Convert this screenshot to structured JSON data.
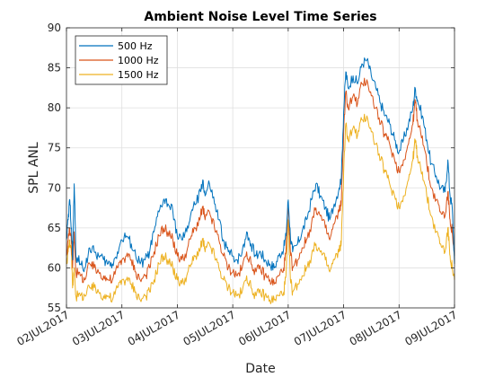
{
  "chart_data": {
    "type": "line",
    "title": "Ambient Noise Level Time Series",
    "xlabel": "Date",
    "ylabel": "SPL ANL",
    "ylim": [
      55,
      90
    ],
    "yticks": [
      55,
      60,
      65,
      70,
      75,
      80,
      85,
      90
    ],
    "xlim": [
      "02JUL2017",
      "09JUL2017"
    ],
    "xtick_labels": [
      "02JUL2017",
      "03JUL2017",
      "04JUL2017",
      "05JUL2017",
      "06JUL2017",
      "07JUL2017",
      "08JUL2017",
      "09JUL2017"
    ],
    "x_unit": "day",
    "grid": true,
    "legend_position": "top-left",
    "series": [
      {
        "name": "500 Hz",
        "color": "#0072BD",
        "points": [
          [
            0.0,
            63.5
          ],
          [
            0.03,
            66.0
          ],
          [
            0.06,
            68.5
          ],
          [
            0.09,
            65.0
          ],
          [
            0.11,
            61.0
          ],
          [
            0.14,
            70.5
          ],
          [
            0.17,
            61.5
          ],
          [
            0.25,
            60.5
          ],
          [
            0.33,
            60.0
          ],
          [
            0.42,
            62.5
          ],
          [
            0.5,
            62.0
          ],
          [
            0.58,
            61.5
          ],
          [
            0.67,
            61.0
          ],
          [
            0.75,
            60.5
          ],
          [
            0.83,
            60.5
          ],
          [
            0.92,
            62.0
          ],
          [
            1.0,
            63.5
          ],
          [
            1.08,
            64.0
          ],
          [
            1.17,
            63.0
          ],
          [
            1.25,
            61.5
          ],
          [
            1.33,
            60.5
          ],
          [
            1.42,
            61.0
          ],
          [
            1.5,
            62.0
          ],
          [
            1.58,
            64.5
          ],
          [
            1.67,
            67.0
          ],
          [
            1.75,
            68.5
          ],
          [
            1.83,
            68.0
          ],
          [
            1.92,
            67.0
          ],
          [
            2.0,
            64.0
          ],
          [
            2.08,
            63.5
          ],
          [
            2.17,
            64.5
          ],
          [
            2.25,
            67.0
          ],
          [
            2.33,
            68.0
          ],
          [
            2.42,
            69.5
          ],
          [
            2.46,
            71.0
          ],
          [
            2.5,
            69.0
          ],
          [
            2.58,
            70.5
          ],
          [
            2.67,
            68.0
          ],
          [
            2.75,
            66.0
          ],
          [
            2.83,
            63.5
          ],
          [
            2.92,
            62.0
          ],
          [
            3.0,
            61.5
          ],
          [
            3.08,
            61.0
          ],
          [
            3.17,
            62.0
          ],
          [
            3.25,
            64.5
          ],
          [
            3.33,
            63.0
          ],
          [
            3.42,
            61.5
          ],
          [
            3.5,
            62.0
          ],
          [
            3.58,
            61.0
          ],
          [
            3.67,
            60.5
          ],
          [
            3.75,
            60.0
          ],
          [
            3.83,
            61.5
          ],
          [
            3.92,
            62.5
          ],
          [
            3.96,
            64.0
          ],
          [
            4.0,
            68.5
          ],
          [
            4.04,
            64.0
          ],
          [
            4.08,
            62.0
          ],
          [
            4.17,
            63.0
          ],
          [
            4.25,
            64.5
          ],
          [
            4.33,
            66.0
          ],
          [
            4.42,
            68.5
          ],
          [
            4.5,
            70.5
          ],
          [
            4.58,
            69.0
          ],
          [
            4.67,
            67.5
          ],
          [
            4.75,
            66.0
          ],
          [
            4.83,
            68.0
          ],
          [
            4.92,
            70.0
          ],
          [
            4.96,
            71.5
          ],
          [
            5.0,
            79.5
          ],
          [
            5.04,
            84.5
          ],
          [
            5.08,
            82.5
          ],
          [
            5.17,
            84.0
          ],
          [
            5.25,
            83.0
          ],
          [
            5.33,
            85.5
          ],
          [
            5.42,
            86.0
          ],
          [
            5.5,
            84.0
          ],
          [
            5.58,
            82.5
          ],
          [
            5.67,
            80.5
          ],
          [
            5.75,
            79.0
          ],
          [
            5.83,
            78.0
          ],
          [
            5.92,
            76.0
          ],
          [
            6.0,
            74.5
          ],
          [
            6.08,
            76.0
          ],
          [
            6.17,
            78.0
          ],
          [
            6.25,
            80.0
          ],
          [
            6.29,
            82.5
          ],
          [
            6.33,
            81.0
          ],
          [
            6.42,
            79.0
          ],
          [
            6.5,
            76.0
          ],
          [
            6.58,
            73.0
          ],
          [
            6.67,
            71.5
          ],
          [
            6.75,
            70.0
          ],
          [
            6.83,
            69.5
          ],
          [
            6.88,
            73.5
          ],
          [
            6.92,
            69.0
          ],
          [
            6.96,
            67.5
          ],
          [
            7.0,
            60.5
          ]
        ]
      },
      {
        "name": "1000 Hz",
        "color": "#D95319",
        "points": [
          [
            0.0,
            61.5
          ],
          [
            0.03,
            63.5
          ],
          [
            0.06,
            65.0
          ],
          [
            0.09,
            63.0
          ],
          [
            0.11,
            60.0
          ],
          [
            0.14,
            64.5
          ],
          [
            0.17,
            59.5
          ],
          [
            0.25,
            59.0
          ],
          [
            0.33,
            58.5
          ],
          [
            0.42,
            60.5
          ],
          [
            0.5,
            60.0
          ],
          [
            0.58,
            59.5
          ],
          [
            0.67,
            59.0
          ],
          [
            0.75,
            58.5
          ],
          [
            0.83,
            58.5
          ],
          [
            0.92,
            60.0
          ],
          [
            1.0,
            61.0
          ],
          [
            1.08,
            61.5
          ],
          [
            1.17,
            61.0
          ],
          [
            1.25,
            59.5
          ],
          [
            1.33,
            58.5
          ],
          [
            1.42,
            59.0
          ],
          [
            1.5,
            60.0
          ],
          [
            1.58,
            62.0
          ],
          [
            1.67,
            64.0
          ],
          [
            1.75,
            65.0
          ],
          [
            1.83,
            64.5
          ],
          [
            1.92,
            63.5
          ],
          [
            2.0,
            61.5
          ],
          [
            2.08,
            61.0
          ],
          [
            2.17,
            62.0
          ],
          [
            2.25,
            64.0
          ],
          [
            2.33,
            65.0
          ],
          [
            2.42,
            66.5
          ],
          [
            2.46,
            67.5
          ],
          [
            2.5,
            66.0
          ],
          [
            2.58,
            67.0
          ],
          [
            2.67,
            65.0
          ],
          [
            2.75,
            63.5
          ],
          [
            2.83,
            61.5
          ],
          [
            2.92,
            60.0
          ],
          [
            3.0,
            59.5
          ],
          [
            3.08,
            59.0
          ],
          [
            3.17,
            60.0
          ],
          [
            3.25,
            62.0
          ],
          [
            3.33,
            60.5
          ],
          [
            3.42,
            59.5
          ],
          [
            3.5,
            60.0
          ],
          [
            3.58,
            59.0
          ],
          [
            3.67,
            58.5
          ],
          [
            3.75,
            58.0
          ],
          [
            3.83,
            59.0
          ],
          [
            3.92,
            60.0
          ],
          [
            3.96,
            62.0
          ],
          [
            4.0,
            67.5
          ],
          [
            4.04,
            62.0
          ],
          [
            4.08,
            60.0
          ],
          [
            4.17,
            61.0
          ],
          [
            4.25,
            62.5
          ],
          [
            4.33,
            63.5
          ],
          [
            4.42,
            65.5
          ],
          [
            4.5,
            67.5
          ],
          [
            4.58,
            66.5
          ],
          [
            4.67,
            65.0
          ],
          [
            4.75,
            63.5
          ],
          [
            4.83,
            65.5
          ],
          [
            4.92,
            67.0
          ],
          [
            4.96,
            68.5
          ],
          [
            5.0,
            77.0
          ],
          [
            5.04,
            82.0
          ],
          [
            5.08,
            80.0
          ],
          [
            5.17,
            81.5
          ],
          [
            5.25,
            80.5
          ],
          [
            5.33,
            83.0
          ],
          [
            5.42,
            83.5
          ],
          [
            5.5,
            81.5
          ],
          [
            5.58,
            80.0
          ],
          [
            5.67,
            78.0
          ],
          [
            5.75,
            76.5
          ],
          [
            5.83,
            75.5
          ],
          [
            5.92,
            73.5
          ],
          [
            6.0,
            72.0
          ],
          [
            6.08,
            73.5
          ],
          [
            6.17,
            75.5
          ],
          [
            6.25,
            78.0
          ],
          [
            6.29,
            81.0
          ],
          [
            6.33,
            78.5
          ],
          [
            6.42,
            76.5
          ],
          [
            6.5,
            73.0
          ],
          [
            6.58,
            70.0
          ],
          [
            6.67,
            68.5
          ],
          [
            6.75,
            67.0
          ],
          [
            6.83,
            66.5
          ],
          [
            6.88,
            69.5
          ],
          [
            6.92,
            66.0
          ],
          [
            6.96,
            64.5
          ],
          [
            7.0,
            61.5
          ]
        ]
      },
      {
        "name": "1500 Hz",
        "color": "#EDB120",
        "points": [
          [
            0.0,
            60.5
          ],
          [
            0.03,
            62.0
          ],
          [
            0.06,
            63.5
          ],
          [
            0.09,
            61.5
          ],
          [
            0.11,
            57.5
          ],
          [
            0.14,
            60.0
          ],
          [
            0.17,
            56.5
          ],
          [
            0.25,
            56.5
          ],
          [
            0.33,
            56.5
          ],
          [
            0.42,
            57.5
          ],
          [
            0.5,
            57.5
          ],
          [
            0.58,
            57.0
          ],
          [
            0.67,
            56.5
          ],
          [
            0.75,
            56.5
          ],
          [
            0.83,
            56.0
          ],
          [
            0.92,
            57.5
          ],
          [
            1.0,
            58.5
          ],
          [
            1.08,
            58.5
          ],
          [
            1.17,
            58.0
          ],
          [
            1.25,
            57.0
          ],
          [
            1.33,
            56.0
          ],
          [
            1.42,
            56.5
          ],
          [
            1.5,
            57.0
          ],
          [
            1.58,
            58.5
          ],
          [
            1.67,
            60.5
          ],
          [
            1.75,
            61.5
          ],
          [
            1.83,
            61.0
          ],
          [
            1.92,
            60.0
          ],
          [
            2.0,
            58.5
          ],
          [
            2.08,
            58.0
          ],
          [
            2.17,
            59.0
          ],
          [
            2.25,
            60.5
          ],
          [
            2.33,
            61.5
          ],
          [
            2.42,
            62.5
          ],
          [
            2.46,
            63.5
          ],
          [
            2.5,
            62.0
          ],
          [
            2.58,
            63.0
          ],
          [
            2.67,
            61.5
          ],
          [
            2.75,
            60.0
          ],
          [
            2.83,
            58.5
          ],
          [
            2.92,
            57.5
          ],
          [
            3.0,
            57.0
          ],
          [
            3.08,
            56.5
          ],
          [
            3.17,
            57.0
          ],
          [
            3.25,
            59.0
          ],
          [
            3.33,
            57.5
          ],
          [
            3.42,
            56.5
          ],
          [
            3.5,
            57.0
          ],
          [
            3.58,
            56.5
          ],
          [
            3.67,
            56.0
          ],
          [
            3.75,
            56.0
          ],
          [
            3.83,
            56.5
          ],
          [
            3.92,
            57.0
          ],
          [
            3.96,
            59.0
          ],
          [
            4.0,
            66.0
          ],
          [
            4.04,
            58.5
          ],
          [
            4.08,
            57.0
          ],
          [
            4.17,
            58.0
          ],
          [
            4.25,
            59.0
          ],
          [
            4.33,
            60.0
          ],
          [
            4.42,
            61.5
          ],
          [
            4.5,
            63.0
          ],
          [
            4.58,
            62.0
          ],
          [
            4.67,
            61.0
          ],
          [
            4.75,
            59.5
          ],
          [
            4.83,
            61.0
          ],
          [
            4.92,
            62.0
          ],
          [
            4.96,
            63.5
          ],
          [
            5.0,
            72.0
          ],
          [
            5.04,
            78.0
          ],
          [
            5.08,
            76.0
          ],
          [
            5.17,
            77.5
          ],
          [
            5.25,
            76.5
          ],
          [
            5.33,
            78.5
          ],
          [
            5.42,
            79.0
          ],
          [
            5.5,
            77.0
          ],
          [
            5.58,
            75.5
          ],
          [
            5.67,
            73.5
          ],
          [
            5.75,
            72.0
          ],
          [
            5.83,
            70.5
          ],
          [
            5.92,
            69.0
          ],
          [
            6.0,
            67.5
          ],
          [
            6.08,
            69.0
          ],
          [
            6.17,
            71.0
          ],
          [
            6.25,
            73.5
          ],
          [
            6.29,
            76.0
          ],
          [
            6.33,
            74.0
          ],
          [
            6.42,
            72.0
          ],
          [
            6.5,
            69.0
          ],
          [
            6.58,
            66.5
          ],
          [
            6.67,
            64.5
          ],
          [
            6.75,
            63.0
          ],
          [
            6.83,
            62.0
          ],
          [
            6.88,
            65.0
          ],
          [
            6.92,
            61.5
          ],
          [
            6.96,
            60.0
          ],
          [
            7.0,
            58.5
          ]
        ]
      }
    ]
  }
}
